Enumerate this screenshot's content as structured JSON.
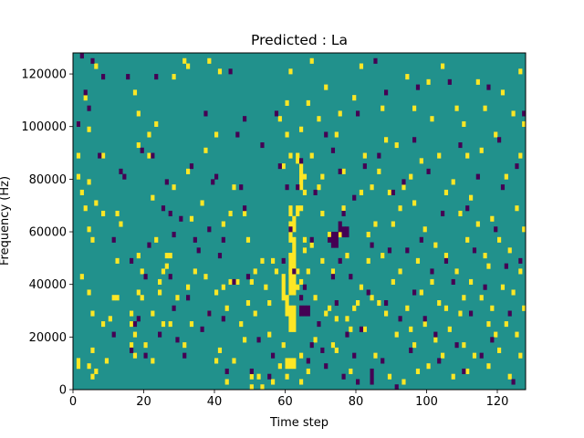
{
  "chart_data": {
    "type": "heatmap",
    "title": "Predicted : La",
    "xlabel": "Time step",
    "ylabel": "Frequency (Hz)",
    "xlim": [
      0,
      128
    ],
    "ylim": [
      0,
      128000
    ],
    "xticks": [
      0,
      20,
      40,
      60,
      80,
      100,
      120
    ],
    "yticks": [
      0,
      20000,
      40000,
      60000,
      80000,
      100000,
      120000
    ],
    "x_ticks_labels": [
      "0",
      "20",
      "40",
      "60",
      "80",
      "100",
      "120"
    ],
    "y_ticks_labels": [
      "0",
      "20000",
      "40000",
      "60000",
      "80000",
      "100000",
      "120000"
    ],
    "n_cols": 128,
    "n_rows": 64,
    "cell_height_hz": 2000,
    "colormap": "viridis",
    "levels": {
      "low": "#440154",
      "mid": "#21918c",
      "high": "#fde725"
    },
    "background_level": "mid",
    "high_cells": [
      [
        1,
        4
      ],
      [
        1,
        5
      ],
      [
        1,
        40
      ],
      [
        1,
        44
      ],
      [
        1,
        50
      ],
      [
        2,
        21
      ],
      [
        2,
        37
      ],
      [
        3,
        34
      ],
      [
        3,
        55
      ],
      [
        4,
        4
      ],
      [
        4,
        18
      ],
      [
        4,
        30
      ],
      [
        4,
        39
      ],
      [
        4,
        49
      ],
      [
        5,
        2
      ],
      [
        5,
        7
      ],
      [
        5,
        14
      ],
      [
        5,
        28
      ],
      [
        6,
        3
      ],
      [
        6,
        35
      ],
      [
        6,
        61
      ],
      [
        8,
        12
      ],
      [
        8,
        33
      ],
      [
        8,
        44
      ],
      [
        9,
        5
      ],
      [
        10,
        13
      ],
      [
        11,
        17
      ],
      [
        12,
        17
      ],
      [
        12,
        24
      ],
      [
        12,
        33
      ],
      [
        13,
        31
      ],
      [
        16,
        8
      ],
      [
        16,
        12
      ],
      [
        16,
        14
      ],
      [
        17,
        6
      ],
      [
        17,
        10
      ],
      [
        17,
        56
      ],
      [
        18,
        18
      ],
      [
        18,
        25
      ],
      [
        18,
        46
      ],
      [
        18,
        52
      ],
      [
        19,
        17
      ],
      [
        19,
        22
      ],
      [
        20,
        8
      ],
      [
        21,
        44
      ],
      [
        21,
        48
      ],
      [
        22,
        5
      ],
      [
        22,
        14
      ],
      [
        22,
        36
      ],
      [
        23,
        28
      ],
      [
        23,
        50
      ],
      [
        24,
        18
      ],
      [
        24,
        20
      ],
      [
        25,
        12
      ],
      [
        25,
        22
      ],
      [
        26,
        23
      ],
      [
        26,
        25
      ],
      [
        27,
        12
      ],
      [
        27,
        25
      ],
      [
        28,
        38
      ],
      [
        28,
        59
      ],
      [
        29,
        17
      ],
      [
        31,
        8
      ],
      [
        31,
        62
      ],
      [
        32,
        19
      ],
      [
        32,
        41
      ],
      [
        32,
        61
      ],
      [
        33,
        12
      ],
      [
        33,
        32
      ],
      [
        34,
        22
      ],
      [
        36,
        35
      ],
      [
        37,
        21
      ],
      [
        37,
        45
      ],
      [
        38,
        14
      ],
      [
        38,
        62
      ],
      [
        40,
        5
      ],
      [
        40,
        18
      ],
      [
        40,
        48
      ],
      [
        41,
        7
      ],
      [
        41,
        60
      ],
      [
        42,
        19
      ],
      [
        42,
        31
      ],
      [
        43,
        1
      ],
      [
        43,
        15
      ],
      [
        44,
        20
      ],
      [
        44,
        33
      ],
      [
        45,
        5
      ],
      [
        45,
        38
      ],
      [
        46,
        20
      ],
      [
        47,
        12
      ],
      [
        48,
        9
      ],
      [
        48,
        33
      ],
      [
        49,
        16
      ],
      [
        49,
        28
      ],
      [
        50,
        0
      ],
      [
        50,
        2
      ],
      [
        50,
        20
      ],
      [
        51,
        14
      ],
      [
        51,
        22
      ],
      [
        52,
        2
      ],
      [
        53,
        0
      ],
      [
        53,
        24
      ],
      [
        54,
        19
      ],
      [
        55,
        16
      ],
      [
        55,
        10
      ],
      [
        56,
        1
      ],
      [
        56,
        24
      ],
      [
        57,
        22
      ],
      [
        58,
        4
      ],
      [
        58,
        51
      ],
      [
        59,
        8
      ],
      [
        59,
        42
      ],
      [
        60,
        2
      ],
      [
        60,
        48
      ],
      [
        60,
        54
      ],
      [
        61,
        22
      ],
      [
        61,
        25
      ],
      [
        61,
        44
      ],
      [
        61,
        60
      ],
      [
        62,
        23
      ],
      [
        62,
        28
      ],
      [
        63,
        19
      ],
      [
        63,
        22
      ],
      [
        64,
        1
      ],
      [
        64,
        6
      ],
      [
        64,
        20
      ],
      [
        64,
        34
      ],
      [
        64,
        42
      ],
      [
        64,
        49
      ],
      [
        65,
        26
      ],
      [
        65,
        28
      ],
      [
        65,
        37
      ],
      [
        65,
        40
      ],
      [
        66,
        3
      ],
      [
        66,
        22
      ],
      [
        66,
        54
      ],
      [
        67,
        27
      ],
      [
        67,
        44
      ],
      [
        67,
        62
      ],
      [
        68,
        9
      ],
      [
        68,
        17
      ],
      [
        69,
        38
      ],
      [
        69,
        51
      ],
      [
        70,
        24
      ],
      [
        70,
        33
      ],
      [
        70,
        40
      ],
      [
        71,
        14
      ],
      [
        71,
        57
      ],
      [
        72,
        15
      ],
      [
        72,
        29
      ],
      [
        73,
        8
      ],
      [
        73,
        22
      ],
      [
        74,
        7
      ],
      [
        74,
        13
      ],
      [
        74,
        48
      ],
      [
        75,
        29
      ],
      [
        75,
        52
      ],
      [
        76,
        34
      ],
      [
        76,
        41
      ],
      [
        77,
        13
      ],
      [
        77,
        25
      ],
      [
        78,
        3
      ],
      [
        78,
        11
      ],
      [
        79,
        15
      ],
      [
        79,
        55
      ],
      [
        80,
        16
      ],
      [
        81,
        19
      ],
      [
        81,
        37
      ],
      [
        81,
        61
      ],
      [
        82,
        11
      ],
      [
        82,
        44
      ],
      [
        83,
        24
      ],
      [
        83,
        29
      ],
      [
        84,
        17
      ],
      [
        84,
        38
      ],
      [
        85,
        6
      ],
      [
        85,
        31
      ],
      [
        86,
        16
      ],
      [
        86,
        41
      ],
      [
        87,
        25
      ],
      [
        87,
        53
      ],
      [
        88,
        14
      ],
      [
        88,
        47
      ],
      [
        89,
        2
      ],
      [
        89,
        37
      ],
      [
        90,
        20
      ],
      [
        90,
        31
      ],
      [
        91,
        10
      ],
      [
        91,
        46
      ],
      [
        92,
        22
      ],
      [
        92,
        34
      ],
      [
        93,
        1
      ],
      [
        93,
        38
      ],
      [
        94,
        15
      ],
      [
        94,
        59
      ],
      [
        95,
        11
      ],
      [
        95,
        40
      ],
      [
        96,
        8
      ],
      [
        96,
        35
      ],
      [
        96,
        53
      ],
      [
        97,
        24
      ],
      [
        97,
        3
      ],
      [
        98,
        18
      ],
      [
        98,
        43
      ],
      [
        99,
        12
      ],
      [
        99,
        30
      ],
      [
        100,
        4
      ],
      [
        100,
        58
      ],
      [
        101,
        20
      ],
      [
        101,
        51
      ],
      [
        102,
        9
      ],
      [
        102,
        27
      ],
      [
        103,
        16
      ],
      [
        103,
        44
      ],
      [
        104,
        6
      ],
      [
        104,
        61
      ],
      [
        105,
        15
      ],
      [
        105,
        25
      ],
      [
        105,
        37
      ],
      [
        106,
        11
      ],
      [
        107,
        2
      ],
      [
        107,
        39
      ],
      [
        108,
        22
      ],
      [
        108,
        53
      ],
      [
        109,
        14
      ],
      [
        109,
        33
      ],
      [
        110,
        8
      ],
      [
        110,
        17
      ],
      [
        110,
        50
      ],
      [
        111,
        3
      ],
      [
        111,
        28
      ],
      [
        111,
        44
      ],
      [
        112,
        20
      ],
      [
        112,
        36
      ],
      [
        113,
        6
      ],
      [
        114,
        31
      ],
      [
        114,
        58
      ],
      [
        115,
        17
      ],
      [
        115,
        45
      ],
      [
        116,
        25
      ],
      [
        116,
        53
      ],
      [
        117,
        4
      ],
      [
        117,
        12
      ],
      [
        117,
        23
      ],
      [
        118,
        15
      ],
      [
        118,
        32
      ],
      [
        119,
        10
      ],
      [
        119,
        48
      ],
      [
        120,
        7
      ],
      [
        120,
        28
      ],
      [
        121,
        19
      ],
      [
        121,
        56
      ],
      [
        122,
        12
      ],
      [
        122,
        40
      ],
      [
        123,
        2
      ],
      [
        123,
        26
      ],
      [
        124,
        18
      ],
      [
        124,
        52
      ],
      [
        125,
        10
      ],
      [
        125,
        34
      ],
      [
        126,
        6
      ],
      [
        126,
        22
      ],
      [
        126,
        44
      ],
      [
        126,
        60
      ],
      [
        127,
        15
      ],
      [
        127,
        30
      ],
      [
        127,
        50
      ]
    ],
    "high_blocks": [
      [
        60,
        4,
        6
      ],
      [
        61,
        4,
        6
      ],
      [
        62,
        4,
        6
      ],
      [
        61,
        11,
        16
      ],
      [
        62,
        11,
        16
      ],
      [
        60,
        14,
        18
      ],
      [
        61,
        18,
        22
      ],
      [
        62,
        18,
        22
      ],
      [
        61,
        22,
        26
      ],
      [
        62,
        24,
        28
      ],
      [
        61,
        28,
        32
      ],
      [
        62,
        30,
        33
      ],
      [
        61,
        33,
        35
      ],
      [
        63,
        33,
        35
      ],
      [
        64,
        38,
        41
      ],
      [
        64,
        41,
        42
      ],
      [
        63,
        43,
        45
      ],
      [
        59,
        17,
        22
      ]
    ],
    "low_cells": [
      [
        1,
        50
      ],
      [
        2,
        63
      ],
      [
        3,
        56
      ],
      [
        4,
        53
      ],
      [
        5,
        62
      ],
      [
        7,
        44
      ],
      [
        8,
        59
      ],
      [
        11,
        10
      ],
      [
        11,
        28
      ],
      [
        13,
        41
      ],
      [
        14,
        40
      ],
      [
        15,
        59
      ],
      [
        16,
        7
      ],
      [
        16,
        24
      ],
      [
        17,
        12
      ],
      [
        18,
        13
      ],
      [
        19,
        45
      ],
      [
        20,
        6
      ],
      [
        20,
        21
      ],
      [
        21,
        27
      ],
      [
        22,
        44
      ],
      [
        23,
        59
      ],
      [
        24,
        10
      ],
      [
        25,
        34
      ],
      [
        26,
        39
      ],
      [
        27,
        21
      ],
      [
        27,
        33
      ],
      [
        28,
        15
      ],
      [
        28,
        29
      ],
      [
        29,
        9
      ],
      [
        30,
        32
      ],
      [
        31,
        6
      ],
      [
        32,
        17
      ],
      [
        33,
        42
      ],
      [
        34,
        28
      ],
      [
        35,
        26
      ],
      [
        36,
        11
      ],
      [
        37,
        52
      ],
      [
        38,
        14
      ],
      [
        38,
        30
      ],
      [
        39,
        39
      ],
      [
        40,
        40
      ],
      [
        41,
        25
      ],
      [
        42,
        13
      ],
      [
        42,
        28
      ],
      [
        43,
        3
      ],
      [
        44,
        60
      ],
      [
        45,
        20
      ],
      [
        46,
        48
      ],
      [
        47,
        38
      ],
      [
        48,
        34
      ],
      [
        48,
        51
      ],
      [
        49,
        21
      ],
      [
        50,
        3
      ],
      [
        52,
        9
      ],
      [
        53,
        46
      ],
      [
        55,
        2
      ],
      [
        56,
        6
      ],
      [
        57,
        52
      ],
      [
        58,
        42
      ],
      [
        59,
        24
      ],
      [
        60,
        38
      ],
      [
        61,
        30
      ],
      [
        62,
        22
      ],
      [
        63,
        38
      ],
      [
        64,
        17
      ],
      [
        64,
        43
      ],
      [
        65,
        19
      ],
      [
        66,
        5
      ],
      [
        67,
        8
      ],
      [
        67,
        28
      ],
      [
        68,
        37
      ],
      [
        69,
        12
      ],
      [
        70,
        7
      ],
      [
        71,
        4
      ],
      [
        71,
        48
      ],
      [
        72,
        28
      ],
      [
        73,
        21
      ],
      [
        73,
        45
      ],
      [
        74,
        16
      ],
      [
        75,
        24
      ],
      [
        75,
        41
      ],
      [
        76,
        2
      ],
      [
        76,
        33
      ],
      [
        77,
        10
      ],
      [
        78,
        21
      ],
      [
        79,
        6
      ],
      [
        79,
        36
      ],
      [
        80,
        1
      ],
      [
        80,
        52
      ],
      [
        81,
        11
      ],
      [
        82,
        42
      ],
      [
        83,
        18
      ],
      [
        84,
        27
      ],
      [
        85,
        62
      ],
      [
        86,
        44
      ],
      [
        87,
        5
      ],
      [
        88,
        16
      ],
      [
        88,
        56
      ],
      [
        89,
        26
      ],
      [
        90,
        37
      ],
      [
        91,
        0
      ],
      [
        92,
        13
      ],
      [
        93,
        39
      ],
      [
        94,
        26
      ],
      [
        95,
        7
      ],
      [
        96,
        18
      ],
      [
        96,
        47
      ],
      [
        97,
        57
      ],
      [
        98,
        28
      ],
      [
        99,
        13
      ],
      [
        100,
        41
      ],
      [
        101,
        22
      ],
      [
        102,
        10
      ],
      [
        103,
        5
      ],
      [
        104,
        33
      ],
      [
        105,
        24
      ],
      [
        106,
        58
      ],
      [
        107,
        20
      ],
      [
        108,
        8
      ],
      [
        109,
        46
      ],
      [
        110,
        3
      ],
      [
        111,
        34
      ],
      [
        112,
        14
      ],
      [
        113,
        26
      ],
      [
        114,
        40
      ],
      [
        115,
        6
      ],
      [
        116,
        19
      ],
      [
        117,
        57
      ],
      [
        118,
        9
      ],
      [
        119,
        30
      ],
      [
        120,
        47
      ],
      [
        121,
        38
      ],
      [
        122,
        23
      ],
      [
        123,
        14
      ],
      [
        124,
        1
      ],
      [
        125,
        42
      ],
      [
        126,
        24
      ],
      [
        127,
        52
      ]
    ],
    "low_blocks": [
      [
        64,
        14,
        16
      ],
      [
        65,
        14,
        16
      ],
      [
        66,
        14,
        16
      ],
      [
        73,
        27,
        30
      ],
      [
        74,
        27,
        30
      ],
      [
        75,
        30,
        32
      ],
      [
        76,
        29,
        31
      ],
      [
        77,
        29,
        31
      ],
      [
        84,
        2,
        4
      ],
      [
        84,
        1,
        2
      ]
    ]
  }
}
